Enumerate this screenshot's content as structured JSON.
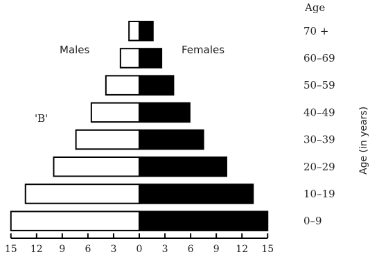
{
  "chart_data": {
    "type": "bar",
    "subtype": "population-pyramid",
    "categories": [
      "70 +",
      "60-69",
      "50-59",
      "40-49",
      "30-39",
      "20-29",
      "10-19",
      "0-9"
    ],
    "series": [
      {
        "name": "Males",
        "values": [
          1.2,
          2.2,
          3.9,
          5.6,
          7.4,
          10.0,
          13.3,
          15.0
        ],
        "fill": "#ffffff"
      },
      {
        "name": "Females",
        "values": [
          1.6,
          2.6,
          4.0,
          5.9,
          7.5,
          10.2,
          13.3,
          15.0
        ],
        "fill": "#000000"
      }
    ],
    "xlim": [
      -15,
      15
    ],
    "xticks": [
      15,
      12,
      9,
      6,
      3,
      0,
      3,
      6,
      9,
      12,
      15
    ],
    "ylabel": "Age (in years)",
    "category_header": "Age",
    "annotation": "'B'"
  }
}
